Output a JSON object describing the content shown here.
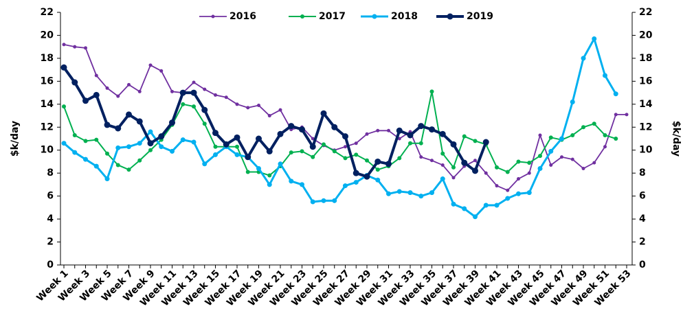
{
  "chart_data": {
    "type": "line",
    "categories": [
      "Week 1",
      null,
      "Week 3",
      null,
      "Week 5",
      null,
      "Week 7",
      null,
      "Week 9",
      null,
      "Week 11",
      null,
      "Week 13",
      null,
      "Week 15",
      null,
      "Week 17",
      null,
      "Week 19",
      null,
      "Week 21",
      null,
      "Week 23",
      null,
      "Week 25",
      null,
      "Week 27",
      null,
      "Week 29",
      null,
      "Week 31",
      null,
      "Week 33",
      null,
      "Week 35",
      null,
      "Week 37",
      null,
      "Week 39",
      null,
      "Week 41",
      null,
      "Week 43",
      null,
      "Week 45",
      null,
      "Week 47",
      null,
      "Week 49",
      null,
      "Week 51",
      null,
      "Week 53"
    ],
    "series": [
      {
        "name": "2016",
        "color": "#7030a0",
        "values": [
          19.2,
          19.0,
          18.9,
          16.5,
          15.4,
          14.7,
          15.7,
          15.1,
          17.4,
          16.9,
          15.1,
          15.0,
          15.9,
          15.3,
          14.8,
          14.6,
          14.0,
          13.7,
          13.9,
          13.0,
          13.5,
          11.8,
          12.0,
          11.0,
          10.4,
          10.0,
          10.3,
          10.6,
          11.4,
          11.7,
          11.7,
          11.0,
          11.6,
          9.4,
          9.1,
          8.7,
          7.6,
          8.6,
          9.1,
          8.0,
          6.9,
          6.5,
          7.5,
          8.0,
          11.3,
          8.7,
          9.4,
          9.2,
          8.4,
          8.9,
          10.3,
          13.1,
          13.1
        ]
      },
      {
        "name": "2017",
        "color": "#00b050",
        "values": [
          13.8,
          11.3,
          10.8,
          10.9,
          9.7,
          8.7,
          8.3,
          9.1,
          10.0,
          10.9,
          12.2,
          14.0,
          13.8,
          12.3,
          10.3,
          10.3,
          10.3,
          8.1,
          8.1,
          7.8,
          8.6,
          9.8,
          9.9,
          9.4,
          10.5,
          9.9,
          9.3,
          9.6,
          9.1,
          8.3,
          8.6,
          9.3,
          10.6,
          10.6,
          15.1,
          9.7,
          8.5,
          11.2,
          10.8,
          10.5,
          8.5,
          8.1,
          9.0,
          8.9,
          9.5,
          11.1,
          10.9,
          11.3,
          12.0,
          12.3,
          11.3,
          11.0,
          null
        ]
      },
      {
        "name": "2018",
        "color": "#00b0f0",
        "values": [
          10.6,
          9.8,
          9.2,
          8.6,
          7.5,
          10.2,
          10.3,
          10.6,
          11.6,
          10.3,
          9.9,
          10.9,
          10.7,
          8.8,
          9.6,
          10.3,
          9.6,
          9.4,
          8.4,
          7.0,
          8.8,
          7.3,
          7.0,
          5.5,
          5.6,
          5.6,
          6.9,
          7.2,
          7.8,
          7.4,
          6.2,
          6.4,
          6.3,
          6.0,
          6.3,
          7.5,
          5.3,
          4.9,
          4.2,
          5.2,
          5.2,
          5.8,
          6.2,
          6.3,
          8.4,
          9.9,
          11.0,
          14.2,
          18.0,
          19.7,
          16.5,
          14.9,
          null
        ]
      },
      {
        "name": "2019",
        "color": "#002060",
        "values": [
          17.2,
          15.9,
          14.3,
          14.8,
          12.2,
          11.9,
          13.1,
          12.5,
          10.6,
          11.2,
          12.4,
          15.0,
          15.0,
          13.5,
          11.5,
          10.5,
          11.1,
          9.4,
          11.0,
          9.9,
          11.4,
          12.1,
          11.8,
          10.3,
          13.2,
          12.0,
          11.2,
          8.0,
          7.7,
          9.0,
          8.8,
          11.7,
          11.3,
          12.1,
          11.8,
          11.4,
          10.5,
          8.9,
          8.2,
          10.7,
          null,
          null,
          null,
          null,
          null,
          null,
          null,
          null,
          null,
          null,
          null,
          null,
          null
        ]
      }
    ],
    "y_label": "$k/day",
    "y2_label": "$k/day",
    "ylim": [
      0,
      22
    ],
    "yticks": [
      0,
      2,
      4,
      6,
      8,
      10,
      12,
      14,
      16,
      18,
      20,
      22
    ],
    "y2lim": [
      0,
      22
    ],
    "y2ticks": [
      0,
      2,
      4,
      6,
      8,
      10,
      12,
      14,
      16,
      18,
      20,
      22
    ],
    "legend": "top"
  }
}
